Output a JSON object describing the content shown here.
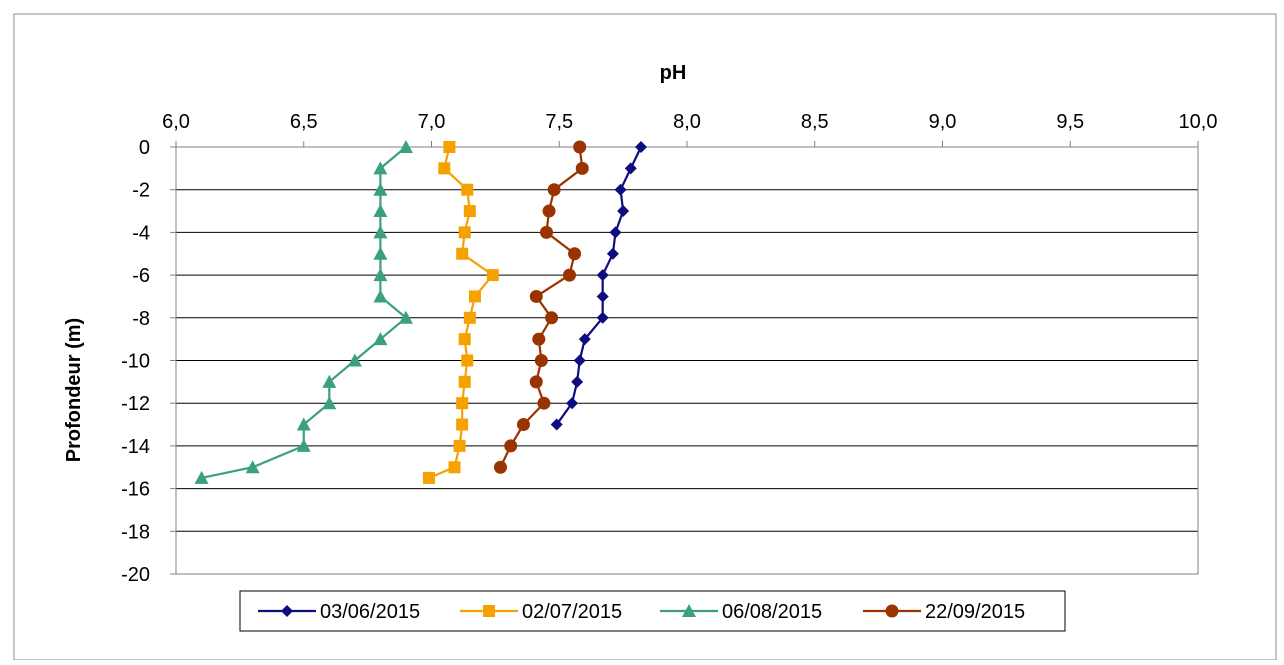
{
  "chart_data": {
    "type": "line",
    "title": "",
    "xlabel": "pH",
    "ylabel": "Profondeur (m)",
    "xlim": [
      6.0,
      10.0
    ],
    "ylim": [
      -20,
      0
    ],
    "x_ticks": [
      "6,0",
      "6,5",
      "7,0",
      "7,5",
      "8,0",
      "8,5",
      "9,0",
      "9,5",
      "10,0"
    ],
    "y_ticks": [
      "0",
      "-2",
      "-4",
      "-6",
      "-8",
      "-10",
      "-12",
      "-14",
      "-16",
      "-18",
      "-20"
    ],
    "grid": "horizontal",
    "legend_position": "bottom",
    "series": [
      {
        "name": "03/06/2015",
        "color": "#0d0d7f",
        "marker": "diamond",
        "points": [
          [
            7.82,
            0
          ],
          [
            7.78,
            -1
          ],
          [
            7.74,
            -2
          ],
          [
            7.75,
            -3
          ],
          [
            7.72,
            -4
          ],
          [
            7.71,
            -5
          ],
          [
            7.67,
            -6
          ],
          [
            7.67,
            -7
          ],
          [
            7.67,
            -8
          ],
          [
            7.6,
            -9
          ],
          [
            7.58,
            -10
          ],
          [
            7.57,
            -11
          ],
          [
            7.55,
            -12
          ],
          [
            7.49,
            -13
          ]
        ]
      },
      {
        "name": "02/07/2015",
        "color": "#f5a200",
        "marker": "square",
        "points": [
          [
            7.07,
            0
          ],
          [
            7.05,
            -1
          ],
          [
            7.14,
            -2
          ],
          [
            7.15,
            -3
          ],
          [
            7.13,
            -4
          ],
          [
            7.12,
            -5
          ],
          [
            7.24,
            -6
          ],
          [
            7.17,
            -7
          ],
          [
            7.15,
            -8
          ],
          [
            7.13,
            -9
          ],
          [
            7.14,
            -10
          ],
          [
            7.13,
            -11
          ],
          [
            7.12,
            -12
          ],
          [
            7.12,
            -13
          ],
          [
            7.11,
            -14
          ],
          [
            7.09,
            -15
          ],
          [
            6.99,
            -15.5
          ]
        ]
      },
      {
        "name": "06/08/2015",
        "color": "#3aa17a",
        "marker": "triangle",
        "points": [
          [
            6.9,
            0
          ],
          [
            6.8,
            -1
          ],
          [
            6.8,
            -2
          ],
          [
            6.8,
            -3
          ],
          [
            6.8,
            -4
          ],
          [
            6.8,
            -5
          ],
          [
            6.8,
            -6
          ],
          [
            6.8,
            -7
          ],
          [
            6.9,
            -8
          ],
          [
            6.8,
            -9
          ],
          [
            6.7,
            -10
          ],
          [
            6.6,
            -11
          ],
          [
            6.6,
            -12
          ],
          [
            6.5,
            -13
          ],
          [
            6.5,
            -14
          ],
          [
            6.3,
            -15
          ],
          [
            6.1,
            -15.5
          ]
        ]
      },
      {
        "name": "22/09/2015",
        "color": "#993300",
        "marker": "circle",
        "points": [
          [
            7.58,
            0
          ],
          [
            7.59,
            -1
          ],
          [
            7.48,
            -2
          ],
          [
            7.46,
            -3
          ],
          [
            7.45,
            -4
          ],
          [
            7.56,
            -5
          ],
          [
            7.54,
            -6
          ],
          [
            7.41,
            -7
          ],
          [
            7.47,
            -8
          ],
          [
            7.42,
            -9
          ],
          [
            7.43,
            -10
          ],
          [
            7.41,
            -11
          ],
          [
            7.44,
            -12
          ],
          [
            7.36,
            -13
          ],
          [
            7.31,
            -14
          ],
          [
            7.27,
            -15
          ]
        ]
      }
    ]
  }
}
